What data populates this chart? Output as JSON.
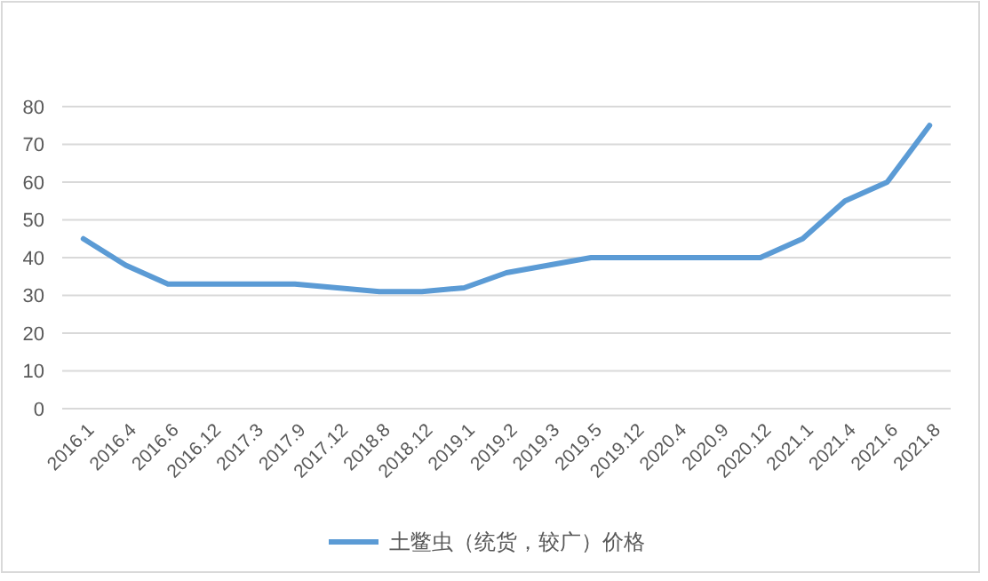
{
  "chart_data": {
    "type": "line",
    "categories": [
      "2016.1",
      "2016.4",
      "2016.6",
      "2016.12",
      "2017.3",
      "2017.9",
      "2017.12",
      "2018.8",
      "2018.12",
      "2019.1",
      "2019.2",
      "2019.3",
      "2019.5",
      "2019.12",
      "2020.4",
      "2020.9",
      "2020.12",
      "2021.1",
      "2021.4",
      "2021.6",
      "2021.8"
    ],
    "series": [
      {
        "name": "土鳖虫（统货，较广）价格",
        "color": "#5b9bd5",
        "values": [
          45,
          38,
          33,
          33,
          33,
          33,
          32,
          31,
          31,
          32,
          36,
          38,
          40,
          40,
          40,
          40,
          40,
          45,
          55,
          60,
          75
        ]
      }
    ],
    "ylim": [
      0,
      80
    ],
    "yticks": [
      0,
      10,
      20,
      30,
      40,
      50,
      60,
      70,
      80
    ],
    "grid": "y",
    "legend": "bottom",
    "marker": "none",
    "line_style": "solid"
  }
}
